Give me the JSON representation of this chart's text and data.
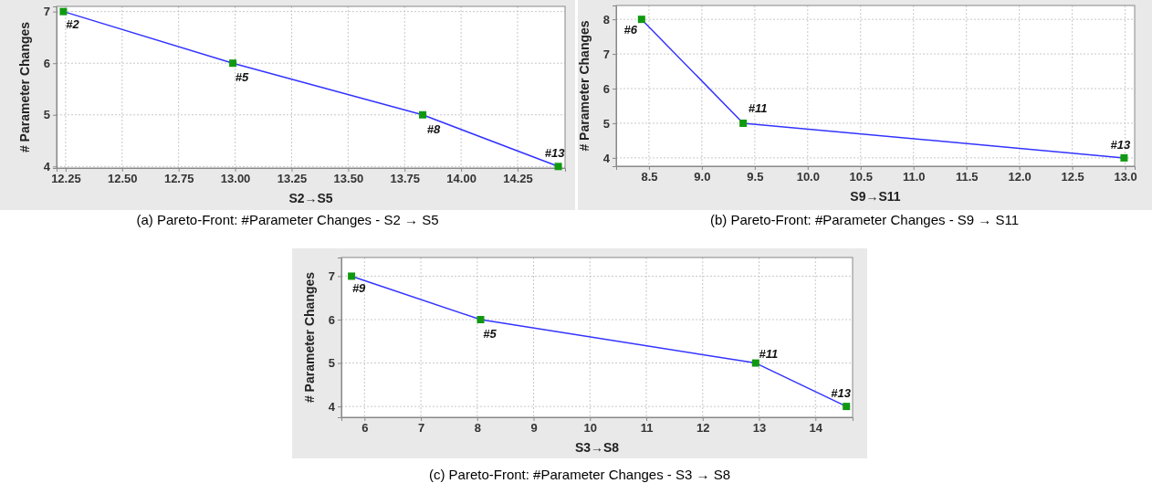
{
  "chart_data": [
    {
      "type": "line",
      "xlabel": "S2→S5",
      "ylabel": "# Parameter Changes",
      "x": [
        12.24,
        12.99,
        13.83,
        14.43
      ],
      "values": [
        7,
        6,
        5,
        4
      ],
      "color": "#3333ff",
      "marker": "square",
      "grid": true,
      "xlim": [
        12.21,
        14.46
      ],
      "ylim": [
        3.97,
        7.1
      ],
      "xticks": [
        {
          "value": 12.25,
          "label": "12.25"
        },
        {
          "value": 12.5,
          "label": "12.50"
        },
        {
          "value": 12.75,
          "label": "12.75"
        },
        {
          "value": 13,
          "label": "13.00"
        },
        {
          "value": 13.25,
          "label": "13.25"
        },
        {
          "value": 13.5,
          "label": "13.50"
        },
        {
          "value": 13.75,
          "label": "13.75"
        },
        {
          "value": 14,
          "label": "14.00"
        },
        {
          "value": 14.25,
          "label": "14.25"
        }
      ],
      "yticks": [
        4,
        5,
        6,
        7
      ],
      "annotations": [
        {
          "text": "#2",
          "x": 12.24,
          "y": 7
        },
        {
          "text": "#5",
          "x": 12.99,
          "y": 6
        },
        {
          "text": "#8",
          "x": 13.83,
          "y": 5
        },
        {
          "text": "#13",
          "x": 14.43,
          "y": 4
        },
        "(a) Pareto-Front: #Parameter Changes - S2 → S5"
      ]
    },
    {
      "type": "line",
      "xlabel": "S9→S11",
      "ylabel": "# Parameter Changes",
      "x": [
        8.43,
        9.39,
        12.99
      ],
      "values": [
        8,
        5,
        4
      ],
      "color": "#3333ff",
      "marker": "square",
      "grid": true,
      "xlim": [
        8.19,
        13.09
      ],
      "ylim": [
        3.76,
        8.4
      ],
      "xticks": [
        {
          "value": 8.5,
          "label": "8.5"
        },
        {
          "value": 9,
          "label": "9.0"
        },
        {
          "value": 9.5,
          "label": "9.5"
        },
        {
          "value": 10,
          "label": "10.0"
        },
        {
          "value": 10.5,
          "label": "10.5"
        },
        {
          "value": 11,
          "label": "11.0"
        },
        {
          "value": 11.5,
          "label": "11.5"
        },
        {
          "value": 12,
          "label": "12.0"
        },
        {
          "value": 12.5,
          "label": "12.5"
        },
        {
          "value": 13,
          "label": "13.0"
        }
      ],
      "yticks": [
        4,
        5,
        6,
        7,
        8
      ],
      "annotations": [
        {
          "text": "#6",
          "x": 8.43,
          "y": 8
        },
        {
          "text": "#11",
          "x": 9.39,
          "y": 5
        },
        {
          "text": "#13",
          "x": 12.99,
          "y": 4
        },
        "(b) Pareto-Front: #Parameter Changes - S9 → S11"
      ]
    },
    {
      "type": "line",
      "xlabel": "S3→S8",
      "ylabel": "# Parameter Changes",
      "x": [
        5.77,
        8.06,
        12.94,
        14.55
      ],
      "values": [
        7,
        6,
        5,
        4
      ],
      "color": "#3333ff",
      "marker": "square",
      "grid": true,
      "xlim": [
        5.59,
        14.66
      ],
      "ylim": [
        3.75,
        7.43
      ],
      "xticks": [
        6,
        7,
        8,
        9,
        10,
        11,
        12,
        13,
        14
      ],
      "yticks": [
        4,
        5,
        6,
        7
      ],
      "annotations": [
        {
          "text": "#9",
          "x": 5.77,
          "y": 7
        },
        {
          "text": "#5",
          "x": 8.06,
          "y": 6
        },
        {
          "text": "#11",
          "x": 12.94,
          "y": 5
        },
        {
          "text": "#13",
          "x": 14.55,
          "y": 4
        },
        "(c) Pareto-Front: #Parameter Changes - S3 → S8"
      ]
    }
  ]
}
